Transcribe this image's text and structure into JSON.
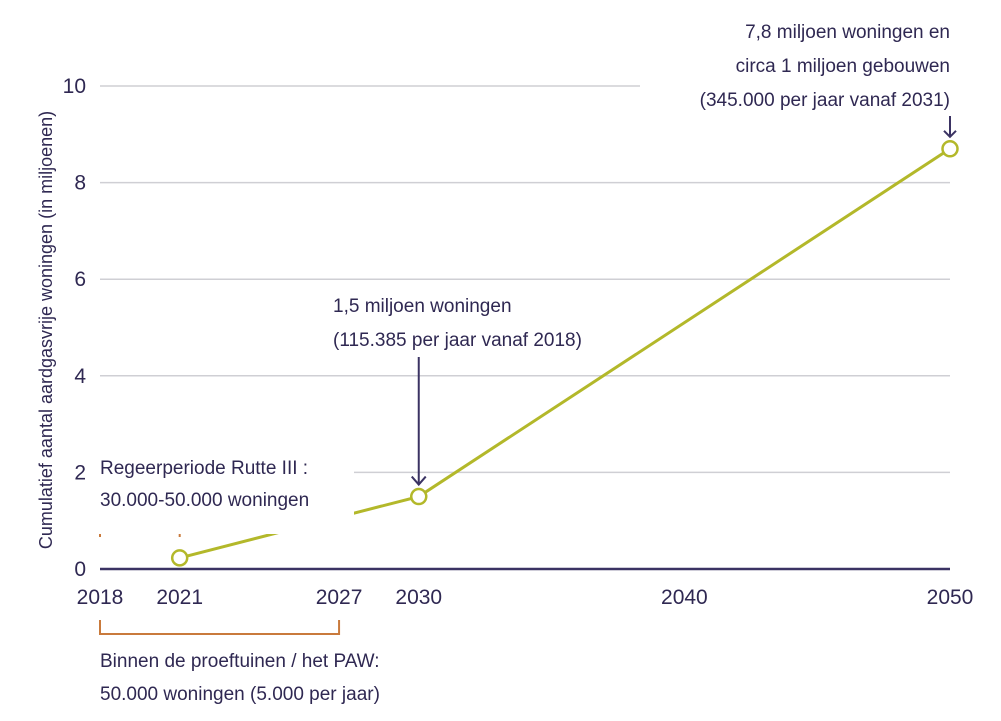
{
  "chart_data": {
    "type": "line",
    "title": "",
    "xlabel": "",
    "ylabel": "Cumulatief aantal aardgasvrije woningen (in miljoenen)",
    "xlim": [
      2018,
      2050
    ],
    "ylim": [
      0,
      10
    ],
    "x_ticks": [
      "2018",
      "2021",
      "2027",
      "2030",
      "2040",
      "2050"
    ],
    "x_tick_values": [
      2018,
      2021,
      2027,
      2030,
      2040,
      2050
    ],
    "y_ticks": [
      "0",
      "2",
      "4",
      "6",
      "8",
      "10"
    ],
    "y_tick_values": [
      0,
      2,
      4,
      6,
      8,
      10
    ],
    "grid": true,
    "series": [
      {
        "name": "Cumulatief aardgasvrije woningen",
        "x": [
          2021,
          2030,
          2050
        ],
        "y": [
          0.23,
          1.5,
          8.7
        ]
      }
    ],
    "colors": {
      "line": "#b3b82a",
      "text": "#2f2852",
      "axis": "#3b3363",
      "grid": "#cfcfd4",
      "bracket": "#c97a3c"
    },
    "annotations": {
      "end": [
        "7,8 miljoen woningen en",
        "circa 1 miljoen gebouwen",
        "(345.000 per jaar vanaf 2031)"
      ],
      "mid": [
        "1,5 miljoen woningen",
        "(115.385 per jaar vanaf 2018)"
      ],
      "rutte": [
        "Regeerperiode Rutte III :",
        "30.000-50.000 woningen"
      ],
      "paw": [
        "Binnen de proeftuinen / het PAW:",
        "50.000 woningen (5.000 per jaar)"
      ]
    },
    "brackets": [
      {
        "name": "rutte",
        "from": 2018,
        "to": 2021
      },
      {
        "name": "paw",
        "from": 2018,
        "to": 2027
      }
    ]
  }
}
